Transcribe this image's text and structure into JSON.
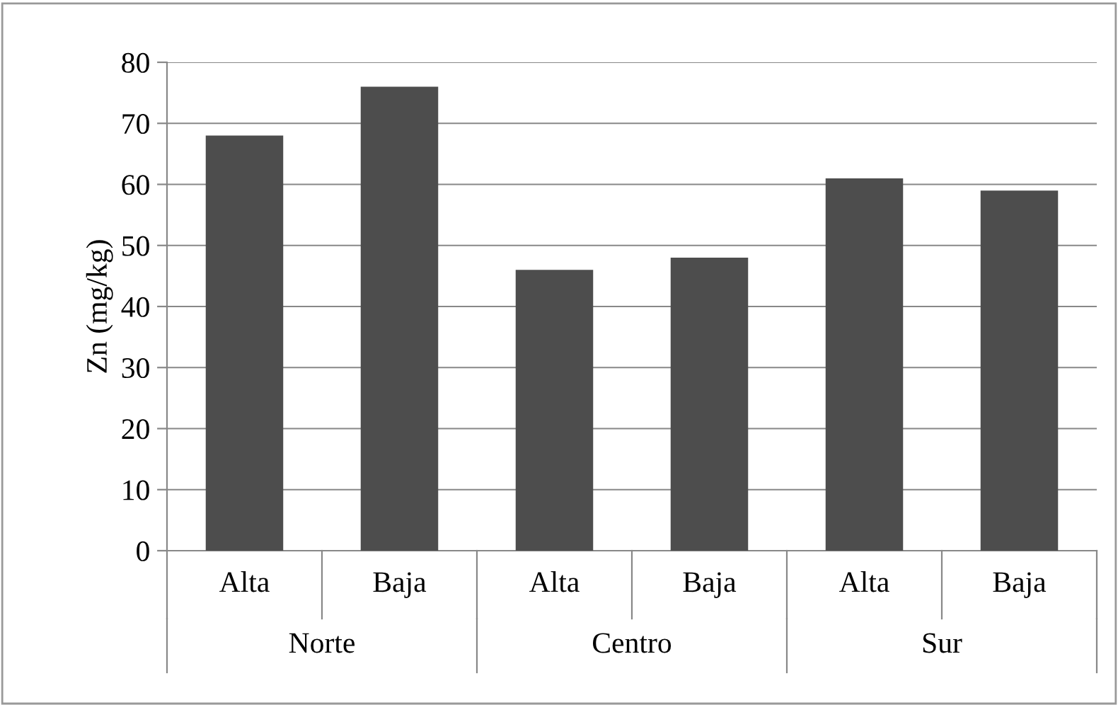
{
  "chart_data": {
    "type": "bar",
    "ylabel": "Zn (mg/kg)",
    "categories": [
      "Alta",
      "Baja",
      "Alta",
      "Baja",
      "Alta",
      "Baja"
    ],
    "values": [
      68,
      76,
      46,
      48,
      61,
      59
    ],
    "color": "#4d4d4d",
    "ylim": [
      0,
      80
    ],
    "yticks": [
      0,
      10,
      20,
      30,
      40,
      50,
      60,
      70,
      80
    ],
    "grid": "y",
    "legend": false,
    "annotations": [
      "Norte",
      "Centro",
      "Sur"
    ]
  }
}
